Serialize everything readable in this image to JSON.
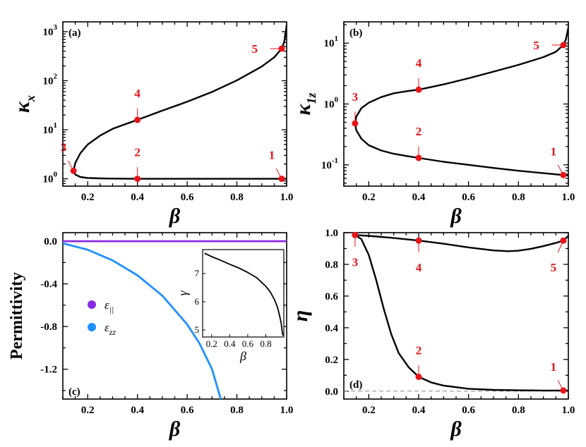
{
  "colors": {
    "marker": "#e8141a",
    "curve": "#000000",
    "eps_par": "#8a2be2",
    "eps_zz": "#1e90ff",
    "dashed": "#888888"
  },
  "chart_data": [
    {
      "panel": "a",
      "type": "line",
      "tag": "(a)",
      "xlabel": "β",
      "ylabel": "κ",
      "ylabel_sub": "x",
      "yscale": "log",
      "xlim": [
        0.1,
        1.0
      ],
      "ylim_log10": [
        -0.15,
        3.2
      ],
      "xticks": [
        {
          "v": 0.2,
          "label": "0.2"
        },
        {
          "v": 0.4,
          "label": "0.4"
        },
        {
          "v": 0.6,
          "label": "0.6"
        },
        {
          "v": 0.8,
          "label": "0.8"
        },
        {
          "v": 1.0,
          "label": "1.0"
        }
      ],
      "yticks": [
        {
          "exp": 0,
          "base": "10",
          "sup": "0"
        },
        {
          "exp": 1,
          "base": "10",
          "sup": "1"
        },
        {
          "exp": 2,
          "base": "10",
          "sup": "2"
        },
        {
          "exp": 3,
          "base": "10",
          "sup": "3"
        }
      ],
      "series": [
        {
          "name": "upper branch",
          "x": [
            0.143,
            0.15,
            0.17,
            0.2,
            0.25,
            0.3,
            0.35,
            0.4,
            0.5,
            0.6,
            0.7,
            0.8,
            0.9,
            0.95,
            0.98,
            0.99,
            0.995,
            1.0
          ],
          "y": [
            1.45,
            2.1,
            3.3,
            5.0,
            7.6,
            10.4,
            12.9,
            15.9,
            24.5,
            37.2,
            59,
            102,
            195,
            300,
            450,
            620,
            850,
            1350
          ]
        },
        {
          "name": "lower branch",
          "x": [
            0.143,
            0.15,
            0.17,
            0.2,
            0.25,
            0.3,
            0.4,
            0.6,
            0.8,
            0.98,
            1.0
          ],
          "y": [
            1.45,
            1.22,
            1.09,
            1.04,
            1.02,
            1.01,
            1.0,
            1.0,
            1.0,
            1.0,
            1.0
          ]
        }
      ],
      "markers": [
        {
          "label": "1",
          "x": 0.98,
          "y": 1.0,
          "pos": "top-left"
        },
        {
          "label": "2",
          "x": 0.4,
          "y": 1.0,
          "pos": "top"
        },
        {
          "label": "3",
          "x": 0.143,
          "y": 1.45,
          "pos": "top-left"
        },
        {
          "label": "4",
          "x": 0.4,
          "y": 15.9,
          "pos": "top"
        },
        {
          "label": "5",
          "x": 0.98,
          "y": 450,
          "pos": "left"
        }
      ]
    },
    {
      "panel": "b",
      "type": "line",
      "tag": "(b)",
      "xlabel": "β",
      "ylabel": "κ",
      "ylabel_sub": "1z",
      "yscale": "log",
      "xlim": [
        0.1,
        1.0
      ],
      "ylim_log10": [
        -1.35,
        1.35
      ],
      "xticks": [
        {
          "v": 0.2,
          "label": "0.2"
        },
        {
          "v": 0.4,
          "label": "0.4"
        },
        {
          "v": 0.6,
          "label": "0.6"
        },
        {
          "v": 0.8,
          "label": "0.8"
        },
        {
          "v": 1.0,
          "label": "1.0"
        }
      ],
      "yticks": [
        {
          "exp": -1,
          "base": "10",
          "sup": "-1"
        },
        {
          "exp": 0,
          "base": "10",
          "sup": "0"
        },
        {
          "exp": 1,
          "base": "10",
          "sup": "1"
        }
      ],
      "series": [
        {
          "name": "upper branch",
          "x": [
            0.145,
            0.15,
            0.17,
            0.2,
            0.25,
            0.3,
            0.35,
            0.4,
            0.5,
            0.6,
            0.7,
            0.8,
            0.9,
            0.95,
            0.98,
            0.99,
            1.0
          ],
          "y": [
            0.48,
            0.62,
            0.85,
            1.05,
            1.3,
            1.5,
            1.62,
            1.72,
            2.1,
            2.65,
            3.4,
            4.4,
            5.9,
            7.2,
            9.3,
            11.5,
            18
          ]
        },
        {
          "name": "lower branch",
          "x": [
            0.145,
            0.15,
            0.17,
            0.2,
            0.25,
            0.3,
            0.35,
            0.4,
            0.5,
            0.6,
            0.7,
            0.8,
            0.9,
            0.98,
            1.0
          ],
          "y": [
            0.48,
            0.37,
            0.27,
            0.21,
            0.172,
            0.152,
            0.14,
            0.13,
            0.112,
            0.1,
            0.089,
            0.08,
            0.073,
            0.068,
            0.067
          ]
        }
      ],
      "markers": [
        {
          "label": "1",
          "x": 0.98,
          "y": 0.068,
          "pos": "top-left"
        },
        {
          "label": "2",
          "x": 0.4,
          "y": 0.13,
          "pos": "top"
        },
        {
          "label": "3",
          "x": 0.145,
          "y": 0.48,
          "pos": "top"
        },
        {
          "label": "4",
          "x": 0.4,
          "y": 1.72,
          "pos": "top"
        },
        {
          "label": "5",
          "x": 0.98,
          "y": 9.3,
          "pos": "left"
        }
      ]
    },
    {
      "panel": "c",
      "type": "line",
      "tag": "(c)",
      "xlabel": "β",
      "ylabel": "Permittivity",
      "xlim": [
        0.1,
        1.0
      ],
      "ylim": [
        -1.48,
        0.08
      ],
      "xticks": [
        {
          "v": 0.2,
          "label": "0.2"
        },
        {
          "v": 0.4,
          "label": "0.4"
        },
        {
          "v": 0.6,
          "label": "0.6"
        },
        {
          "v": 0.8,
          "label": "0.8"
        },
        {
          "v": 1.0,
          "label": "1.0"
        }
      ],
      "yticks": [
        {
          "v": 0.0,
          "label": "0.0"
        },
        {
          "v": -0.4,
          "label": "-0.4"
        },
        {
          "v": -0.8,
          "label": "-0.8"
        },
        {
          "v": -1.2,
          "label": "-1.2"
        }
      ],
      "series": [
        {
          "name": "ε∥",
          "legend_main": "ε",
          "legend_sub": "||",
          "color_key": "eps_par",
          "x": [
            0.1,
            1.0
          ],
          "y": [
            0.0,
            0.0
          ]
        },
        {
          "name": "εzz",
          "legend_main": "ε",
          "legend_sub": "zz",
          "color_key": "eps_zz",
          "x": [
            0.1,
            0.2,
            0.3,
            0.4,
            0.5,
            0.6,
            0.65,
            0.7,
            0.735
          ],
          "y": [
            -0.02,
            -0.08,
            -0.18,
            -0.32,
            -0.51,
            -0.78,
            -0.96,
            -1.2,
            -1.48
          ]
        }
      ],
      "inset": {
        "xlabel": "β",
        "ylabel": "γ",
        "xlim": [
          0.1,
          1.0
        ],
        "ylim": [
          4.75,
          7.85
        ],
        "xticks": [
          {
            "v": 0.2,
            "label": "0.2"
          },
          {
            "v": 0.4,
            "label": "0.4"
          },
          {
            "v": 0.6,
            "label": "0.6"
          },
          {
            "v": 0.8,
            "label": "0.8"
          }
        ],
        "yticks": [
          {
            "v": 5,
            "label": "5"
          },
          {
            "v": 6,
            "label": "6"
          },
          {
            "v": 7,
            "label": "7"
          }
        ],
        "x": [
          0.12,
          0.2,
          0.3,
          0.4,
          0.5,
          0.6,
          0.7,
          0.8,
          0.85,
          0.9,
          0.93,
          0.95,
          0.97,
          0.98,
          0.99
        ],
        "y": [
          7.72,
          7.6,
          7.47,
          7.33,
          7.2,
          7.04,
          6.85,
          6.55,
          6.35,
          6.05,
          5.8,
          5.55,
          5.25,
          5.0,
          4.8
        ]
      }
    },
    {
      "panel": "d",
      "type": "line",
      "tag": "(d)",
      "xlabel": "β",
      "ylabel": "η",
      "xlim": [
        0.1,
        1.0
      ],
      "ylim": [
        -0.05,
        1.0
      ],
      "xticks": [
        {
          "v": 0.2,
          "label": "0.2"
        },
        {
          "v": 0.4,
          "label": "0.4"
        },
        {
          "v": 0.6,
          "label": "0.6"
        },
        {
          "v": 0.8,
          "label": "0.8"
        },
        {
          "v": 1.0,
          "label": "1.0"
        }
      ],
      "yticks": [
        {
          "v": 0.0,
          "label": "0.0"
        },
        {
          "v": 0.2,
          "label": "0.2"
        },
        {
          "v": 0.4,
          "label": "0.4"
        },
        {
          "v": 0.6,
          "label": "0.6"
        },
        {
          "v": 0.8,
          "label": "0.8"
        },
        {
          "v": 1.0,
          "label": "1.0"
        }
      ],
      "baseline": 0.0,
      "series": [
        {
          "name": "upper branch",
          "x": [
            0.145,
            0.2,
            0.3,
            0.4,
            0.5,
            0.6,
            0.7,
            0.76,
            0.8,
            0.85,
            0.9,
            0.95,
            0.98,
            1.0
          ],
          "y": [
            0.985,
            0.98,
            0.966,
            0.95,
            0.93,
            0.907,
            0.888,
            0.883,
            0.886,
            0.898,
            0.915,
            0.935,
            0.95,
            0.98
          ]
        },
        {
          "name": "lower branch",
          "x": [
            0.145,
            0.17,
            0.2,
            0.23,
            0.26,
            0.29,
            0.32,
            0.36,
            0.4,
            0.45,
            0.5,
            0.6,
            0.7,
            0.8,
            0.9,
            0.98,
            1.0
          ],
          "y": [
            0.985,
            0.96,
            0.86,
            0.7,
            0.52,
            0.36,
            0.24,
            0.15,
            0.09,
            0.055,
            0.035,
            0.015,
            0.008,
            0.005,
            0.004,
            0.004,
            0.004
          ]
        }
      ],
      "markers": [
        {
          "label": "1",
          "x": 0.98,
          "y": 0.004,
          "pos": "top-left"
        },
        {
          "label": "2",
          "x": 0.4,
          "y": 0.09,
          "pos": "top"
        },
        {
          "label": "3",
          "x": 0.145,
          "y": 0.985,
          "pos": "bottom"
        },
        {
          "label": "4",
          "x": 0.4,
          "y": 0.95,
          "pos": "bottom"
        },
        {
          "label": "5",
          "x": 0.98,
          "y": 0.95,
          "pos": "bottom-left"
        }
      ]
    }
  ]
}
